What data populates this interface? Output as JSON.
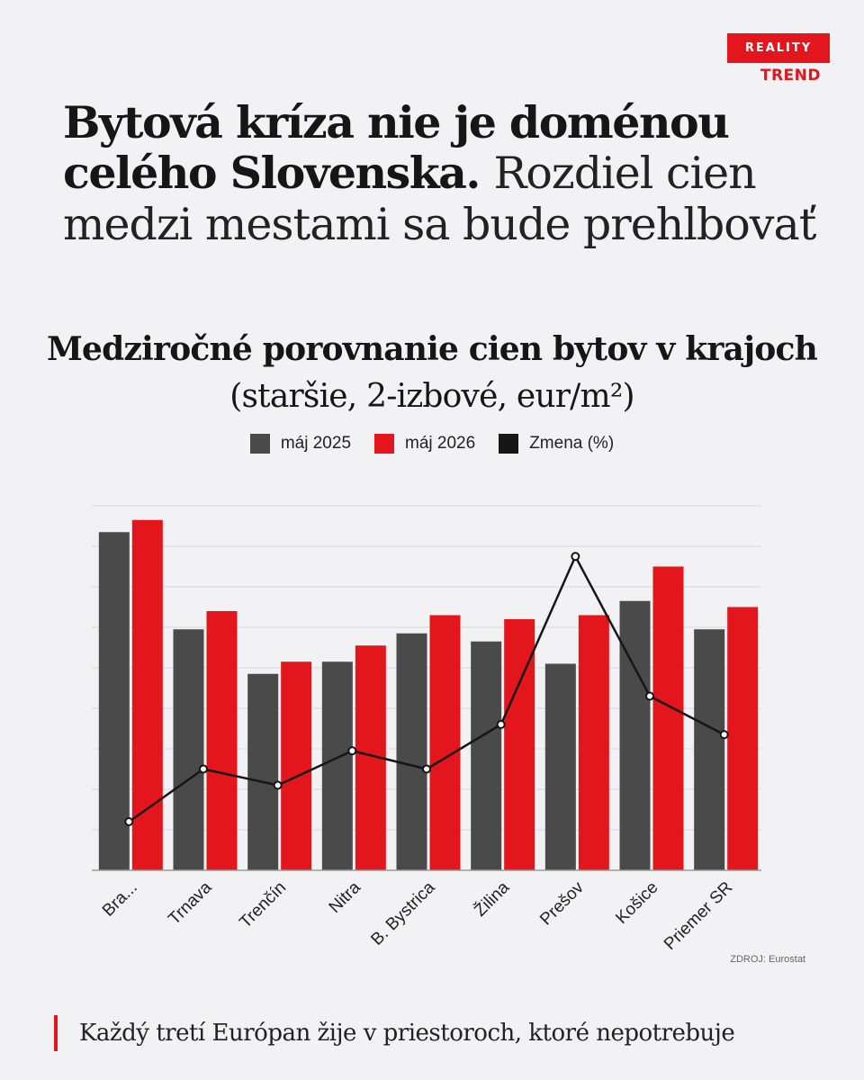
{
  "brand": {
    "top": "REALITY",
    "bottom": "TREND"
  },
  "headline": {
    "bold": "Bytová kríza nie je doménou celého Slovenska.",
    "light": "Rozdiel cien medzi mestami sa bude prehlbovať"
  },
  "chart_title": {
    "bold": "Medziročné porovnanie cien bytov v krajoch",
    "light": "(staršie, 2-izbové, eur/m²)"
  },
  "source": "ZDROJ: Eurostat",
  "footer": "Každý tretí Európan žije v priestoroch, ktoré nepotrebuje",
  "colors": {
    "series_2025": "#4a4a4a",
    "series_2026": "#e3161e",
    "change_line": "#161616",
    "grid": "#d9d8dc"
  },
  "chart_data": {
    "type": "bar",
    "categories": [
      "Bra...",
      "Trnava",
      "Trenčín",
      "Nitra",
      "B. Bystrica",
      "Žilina",
      "Prešov",
      "Košice",
      "Priemer SR"
    ],
    "series": [
      {
        "name": "máj 2025",
        "type": "bar",
        "values": [
          83.5,
          59.5,
          48.5,
          51.5,
          58.5,
          56.5,
          51.0,
          66.5,
          59.5
        ]
      },
      {
        "name": "máj 2026",
        "type": "bar",
        "values": [
          86.5,
          64.0,
          51.5,
          55.5,
          63.0,
          62.0,
          63.0,
          75.0,
          65.0
        ]
      },
      {
        "name": "Zmena (%)",
        "type": "line",
        "values": [
          12.0,
          25.0,
          21.0,
          29.5,
          25.0,
          36.0,
          77.5,
          43.0,
          33.5
        ]
      }
    ],
    "ylim": [
      0,
      90
    ],
    "grid": true,
    "y_ticks_visible": false,
    "legend_position": "top-center"
  }
}
